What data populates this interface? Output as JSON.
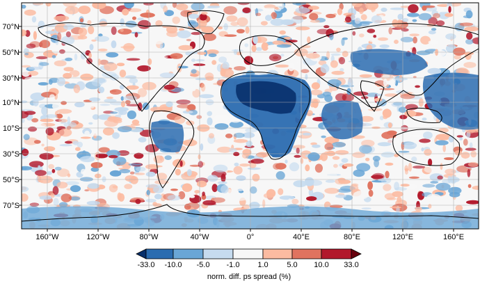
{
  "map": {
    "lat_labels": [
      "70°N",
      "50°N",
      "30°N",
      "10°N",
      "10°S",
      "30°S",
      "50°S",
      "70°S"
    ],
    "lon_labels": [
      "160°W",
      "120°W",
      "80°W",
      "40°W",
      "0°",
      "40°E",
      "80°E",
      "120°E",
      "160°E"
    ],
    "coastline_color": "#000000",
    "gridline_color": "#b0b0b0"
  },
  "colorbar": {
    "title": "norm. diff. ps spread (%)",
    "tick_labels": [
      "-33.0",
      "-10.0",
      "-5.0",
      "-1.0",
      "1.0",
      "5.0",
      "10.0",
      "33.0"
    ],
    "colors": [
      "#08306b",
      "#2b6cb0",
      "#6aa6d6",
      "#c6dbef",
      "#f7f7f7",
      "#fcbba1",
      "#e0735f",
      "#b2182b",
      "#67000d"
    ]
  }
}
